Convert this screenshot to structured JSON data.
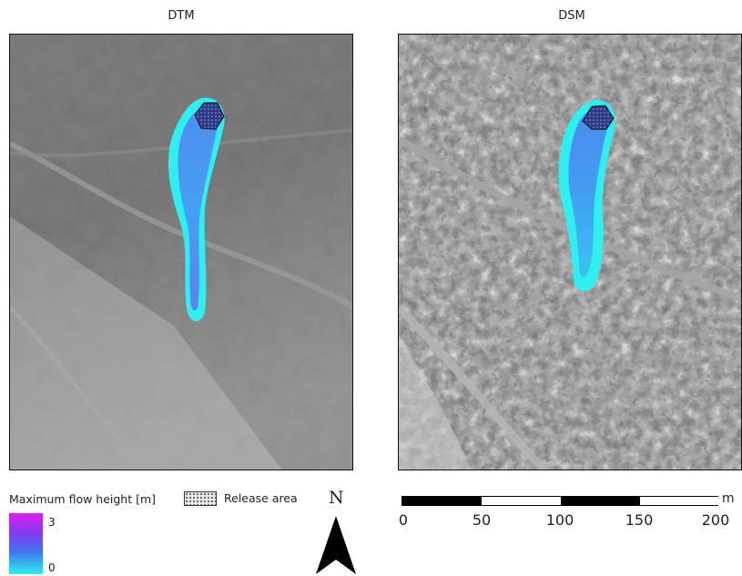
{
  "panels": [
    {
      "title": "DTM"
    },
    {
      "title": "DSM"
    }
  ],
  "legend": {
    "flow_height_title": "Maximum flow height [m]",
    "max_value": "3",
    "min_value": "0",
    "release_area_label": "Release area"
  },
  "north": {
    "label": "N"
  },
  "scalebar": {
    "unit": "m",
    "ticks": [
      "0",
      "50",
      "100",
      "150",
      "200"
    ]
  },
  "colors": {
    "flow_low": "#2ff0f0",
    "flow_mid": "#5a6cf0",
    "flow_high": "#e31bf0",
    "release_fill": "#3b3b8a"
  }
}
